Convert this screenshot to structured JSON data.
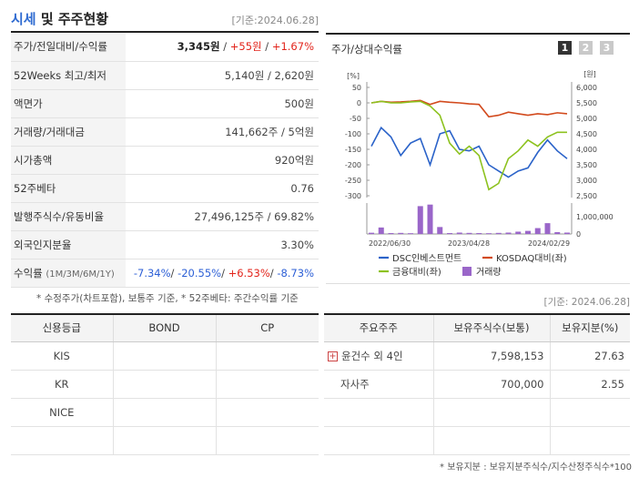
{
  "header": {
    "title_prefix": "시세",
    "title_rest": " 및 주주현황",
    "date": "[기준:2024.06.28]"
  },
  "metrics": [
    {
      "label": "주가/전일대비/수익률",
      "price": "3,345원",
      "sep1": " / ",
      "change": "+55원",
      "sep2": " / ",
      "rate": "+1.67%"
    },
    {
      "label": "52Weeks 최고/최저",
      "value": "5,140원 / 2,620원"
    },
    {
      "label": "액면가",
      "value": "500원"
    },
    {
      "label": "거래량/거래대금",
      "value": "141,662주 / 5억원"
    },
    {
      "label": "시가총액",
      "value": "920억원"
    },
    {
      "label": "52주베타",
      "value": "0.76"
    },
    {
      "label": "발행주식수/유동비율",
      "value": "27,496,125주 / 69.82%"
    },
    {
      "label": "외국인지분율",
      "value": "3.30%"
    },
    {
      "label": "수익률",
      "sub": "(1M/3M/6M/1Y)",
      "r1": "-7.34%",
      "r2": "-20.55%",
      "r3": "+6.53%",
      "r4": "-8.73%"
    }
  ],
  "chart_panel": {
    "title": "주가/상대수익률",
    "pages": [
      "1",
      "2",
      "3"
    ]
  },
  "chart_data": {
    "type": "line",
    "x_ticks": [
      "2022/06/30",
      "2023/04/28",
      "2024/02/29"
    ],
    "left_axis_unit": "[%]",
    "left_ticks": [
      50,
      0,
      -50,
      -100,
      -150,
      -200,
      -250,
      -300
    ],
    "right_axis_unit": "[원]",
    "right_ticks": [
      "6,000",
      "5,500",
      "5,000",
      "4,500",
      "4,000",
      "3,500",
      "3,000",
      "2,500"
    ],
    "volume_ticks": [
      "1,000,000",
      "0"
    ],
    "ylim_left": [
      -300,
      50
    ],
    "ylim_right": [
      2500,
      6000
    ],
    "series": [
      {
        "name": "DSC인베스트먼트",
        "color": "#2b63c9",
        "axis": "right",
        "values": [
          4100,
          4700,
          4400,
          3800,
          4200,
          4350,
          3500,
          4500,
          4600,
          4000,
          3950,
          4100,
          3500,
          3300,
          3100,
          3300,
          3400,
          3900,
          4300,
          3950,
          3700
        ]
      },
      {
        "name": "KOSDAQ대비(좌)",
        "color": "#d24a1d",
        "axis": "left",
        "values": [
          0,
          5,
          2,
          3,
          5,
          8,
          -5,
          5,
          2,
          0,
          -3,
          -5,
          -45,
          -40,
          -30,
          -35,
          -40,
          -35,
          -38,
          -32,
          -35
        ]
      },
      {
        "name": "금융대비(좌)",
        "color": "#8dc21f",
        "axis": "left",
        "values": [
          0,
          5,
          0,
          0,
          3,
          5,
          -10,
          -40,
          -130,
          -165,
          -140,
          -170,
          -280,
          -260,
          -180,
          -155,
          -120,
          -140,
          -110,
          -95,
          -95
        ]
      },
      {
        "name": "거래량",
        "color": "#9a66c9",
        "axis": "volume",
        "values": [
          80000,
          420000,
          60000,
          70000,
          50000,
          1800000,
          1900000,
          450000,
          60000,
          90000,
          70000,
          60000,
          50000,
          70000,
          90000,
          150000,
          200000,
          380000,
          700000,
          120000,
          90000
        ]
      }
    ]
  },
  "notes": {
    "left": "* 수정주가(차트포함), 보통주 기준, * 52주베타: 주간수익률 기준",
    "date": "[기준: 2024.06.28]",
    "right": "* 보유지분 : 보유지분주식수/지수산정주식수*100"
  },
  "credit_table": {
    "headers": [
      "신용등급",
      "BOND",
      "CP"
    ],
    "rows": [
      [
        "KIS",
        "",
        ""
      ],
      [
        "KR",
        "",
        ""
      ],
      [
        "NICE",
        "",
        ""
      ],
      [
        "",
        "",
        ""
      ]
    ]
  },
  "holders_table": {
    "headers": [
      "주요주주",
      "보유주식수(보통)",
      "보유지분(%)"
    ],
    "rows": [
      {
        "name": "윤건수 외 4인",
        "shares": "7,598,153",
        "pct": "27.63",
        "expand": "+"
      },
      {
        "name": "자사주",
        "shares": "700,000",
        "pct": "2.55",
        "expand": ""
      },
      {
        "name": "",
        "shares": "",
        "pct": "",
        "expand": ""
      },
      {
        "name": "",
        "shares": "",
        "pct": "",
        "expand": ""
      }
    ]
  }
}
